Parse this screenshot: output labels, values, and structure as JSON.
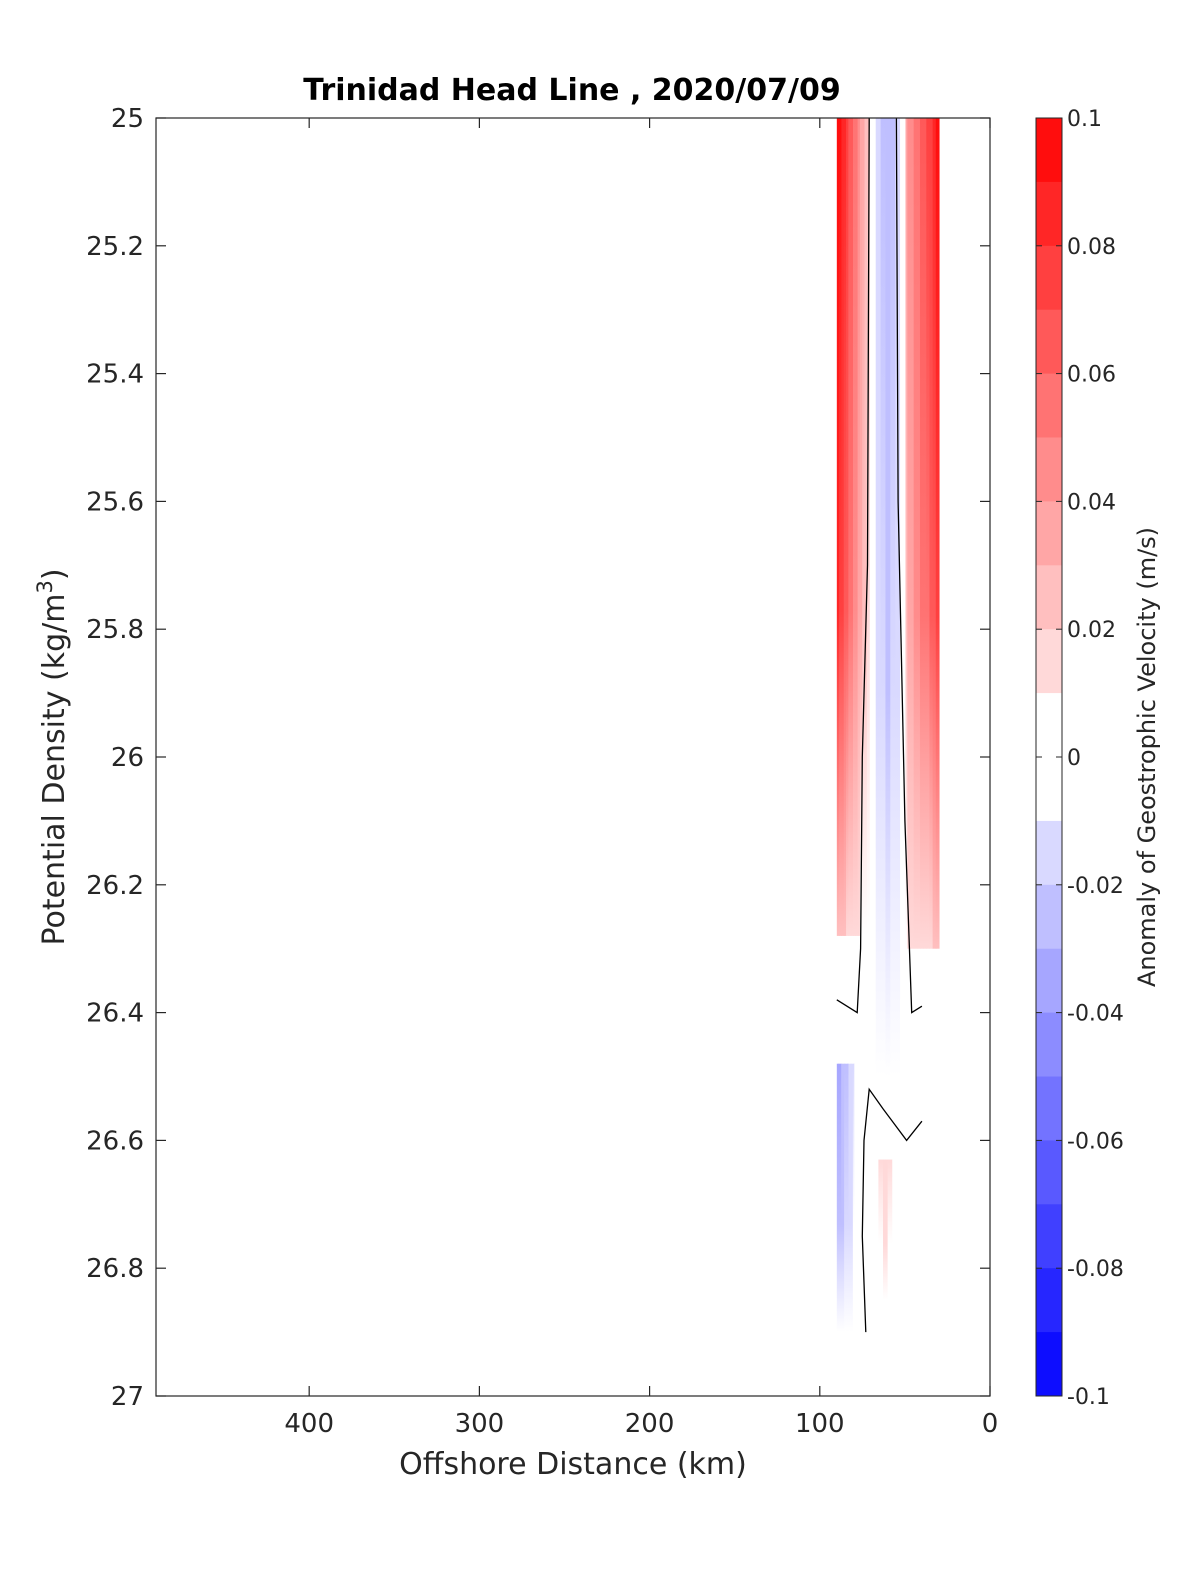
{
  "chart_data": {
    "type": "contour",
    "title": "Trinidad Head Line , 2020/07/09",
    "xlabel": "Offshore Distance (km)",
    "ylabel": "Potential Density (kg/m³)",
    "ylabel_main": "Potential Density (kg/m",
    "ylabel_sup": "3",
    "ylabel_end": ")",
    "xlim": [
      490,
      0
    ],
    "ylim": [
      25,
      27
    ],
    "y_reversed": true,
    "x_reversed": true,
    "x_ticks": [
      "400",
      "300",
      "200",
      "100",
      "0"
    ],
    "x_tick_values": [
      400,
      300,
      200,
      100,
      0
    ],
    "y_ticks": [
      "25",
      "25.2",
      "25.4",
      "25.6",
      "25.8",
      "26",
      "26.2",
      "26.4",
      "26.6",
      "26.8",
      "27"
    ],
    "y_tick_values": [
      25,
      25.2,
      25.4,
      25.6,
      25.8,
      26,
      26.2,
      26.4,
      26.6,
      26.8,
      27
    ],
    "colorbar": {
      "label": "Anomaly of Geostrophic Velocity (m/s)",
      "range": [
        -0.1,
        0.1
      ],
      "ticks": [
        "0.1",
        "0.08",
        "0.06",
        "0.04",
        "0.02",
        "0",
        "-0.02",
        "-0.04",
        "-0.06",
        "-0.08",
        "-0.1"
      ],
      "tick_values": [
        0.1,
        0.08,
        0.06,
        0.04,
        0.02,
        0,
        -0.02,
        -0.04,
        -0.06,
        -0.08,
        -0.1
      ],
      "levels": 20,
      "colormap": "blue-white-red",
      "low_color": "#0000ff",
      "mid_color": "#ffffff",
      "high_color": "#ff0000"
    },
    "regions": [
      {
        "name": "nearshore-positive-band",
        "sign": "positive",
        "max_value": 0.1,
        "x_range_km": [
          90,
          71
        ],
        "y_range": [
          25,
          26.28
        ]
      },
      {
        "name": "inner-positive-band",
        "sign": "positive",
        "max_value": 0.09,
        "x_range_km": [
          56,
          30
        ],
        "y_range": [
          25,
          26.3
        ]
      },
      {
        "name": "central-negative-core",
        "sign": "negative",
        "min_value": -0.03,
        "x_range_km": [
          70,
          50
        ],
        "y_range": [
          25,
          26.5
        ]
      },
      {
        "name": "deep-negative-band",
        "sign": "negative",
        "min_value": -0.035,
        "x_range_km": [
          90,
          78
        ],
        "y_range": [
          26.48,
          26.9
        ]
      },
      {
        "name": "deep-positive-patch",
        "sign": "positive",
        "max_value": 0.015,
        "x_range_km": [
          71,
          52
        ],
        "y_range": [
          26.63,
          26.85
        ]
      }
    ],
    "zero_contours": [
      {
        "points_km_density": [
          [
            71,
            25
          ],
          [
            72,
            25.7
          ],
          [
            75,
            26.0
          ],
          [
            76,
            26.3
          ],
          [
            78,
            26.4
          ],
          [
            90,
            26.38
          ]
        ]
      },
      {
        "points_km_density": [
          [
            55,
            25
          ],
          [
            54,
            25.6
          ],
          [
            50,
            26.1
          ],
          [
            46,
            26.4
          ],
          [
            40,
            26.39
          ]
        ]
      },
      {
        "points_km_density": [
          [
            73,
            26.9
          ],
          [
            75,
            26.75
          ],
          [
            74,
            26.6
          ],
          [
            71,
            26.52
          ],
          [
            63,
            26.55
          ],
          [
            49,
            26.6
          ],
          [
            40,
            26.57
          ]
        ]
      }
    ]
  }
}
